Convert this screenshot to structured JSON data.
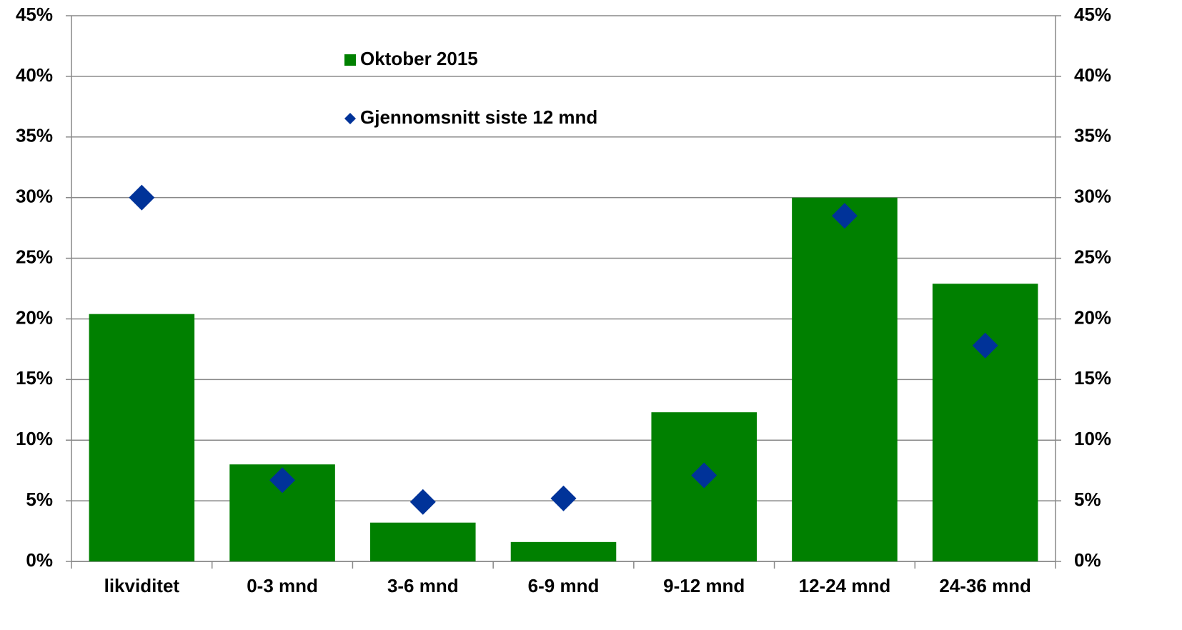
{
  "chart_data": {
    "type": "bar",
    "categories": [
      "likviditet",
      "0-3 mnd",
      "3-6 mnd",
      "6-9 mnd",
      "9-12 mnd",
      "12-24 mnd",
      "24-36 mnd"
    ],
    "series": [
      {
        "name": "Oktober 2015",
        "color": "#008000",
        "values": [
          20.4,
          8.0,
          3.2,
          1.6,
          12.3,
          30.0,
          22.9
        ]
      },
      {
        "name": "Gjennomsnitt siste 12 mnd",
        "color": "#003399",
        "marker": "diamond",
        "values": [
          30.0,
          6.7,
          4.9,
          5.2,
          7.1,
          28.5,
          17.8
        ]
      }
    ],
    "ylim": [
      0,
      45
    ],
    "yticks": [
      {
        "value": 0,
        "label": "0%"
      },
      {
        "value": 5,
        "label": "5%"
      },
      {
        "value": 10,
        "label": "10%"
      },
      {
        "value": 15,
        "label": "15%"
      },
      {
        "value": 20,
        "label": "20%"
      },
      {
        "value": 25,
        "label": "25%"
      },
      {
        "value": 30,
        "label": "30%"
      },
      {
        "value": 35,
        "label": "35%"
      },
      {
        "value": 40,
        "label": "40%"
      },
      {
        "value": 45,
        "label": "45%"
      }
    ],
    "y2lim": [
      0,
      45
    ],
    "y2ticks": [
      {
        "value": 0,
        "label": "0%"
      },
      {
        "value": 5,
        "label": "5%"
      },
      {
        "value": 10,
        "label": "10%"
      },
      {
        "value": 15,
        "label": "15%"
      },
      {
        "value": 20,
        "label": "20%"
      },
      {
        "value": 25,
        "label": "25%"
      },
      {
        "value": 30,
        "label": "30%"
      },
      {
        "value": 35,
        "label": "35%"
      },
      {
        "value": 40,
        "label": "40%"
      },
      {
        "value": 45,
        "label": "45%"
      }
    ],
    "grid": true
  }
}
